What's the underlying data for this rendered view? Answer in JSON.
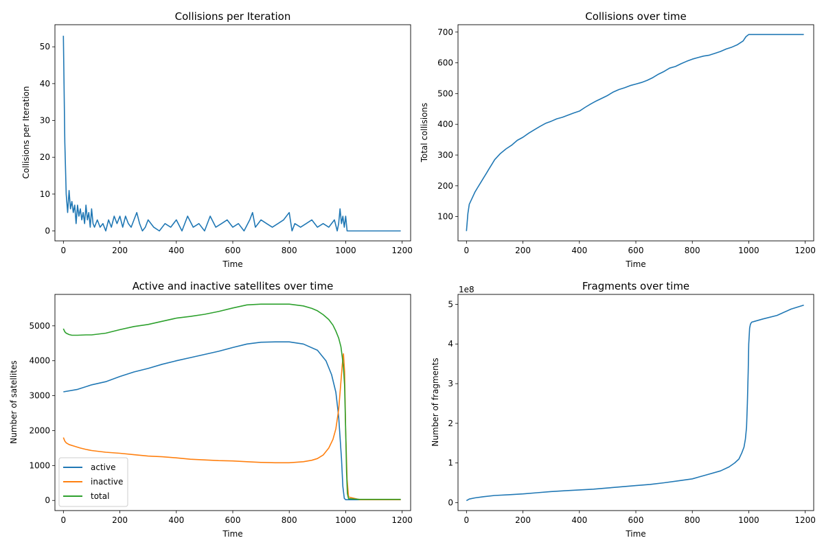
{
  "chart_data": [
    {
      "type": "line",
      "title": "Collisions per Iteration",
      "xlabel": "Time",
      "ylabel": "Collisions per Iteration",
      "xlim": [
        -30,
        1230
      ],
      "ylim": [
        -2.7,
        56
      ],
      "xticks": [
        0,
        200,
        400,
        600,
        800,
        1000,
        1200
      ],
      "yticks": [
        0,
        10,
        20,
        30,
        40,
        50
      ],
      "grid": false,
      "series": [
        {
          "color": "#1f77b4",
          "x": [
            0,
            5,
            10,
            15,
            20,
            25,
            30,
            35,
            40,
            45,
            50,
            55,
            60,
            65,
            70,
            75,
            80,
            85,
            90,
            95,
            100,
            105,
            110,
            120,
            130,
            140,
            150,
            160,
            170,
            180,
            190,
            200,
            210,
            220,
            230,
            240,
            250,
            260,
            270,
            280,
            290,
            300,
            320,
            340,
            360,
            380,
            400,
            420,
            440,
            460,
            480,
            500,
            520,
            540,
            560,
            580,
            600,
            620,
            640,
            660,
            670,
            680,
            700,
            720,
            740,
            760,
            780,
            800,
            810,
            820,
            840,
            860,
            880,
            900,
            920,
            940,
            960,
            970,
            975,
            980,
            985,
            990,
            995,
            1000,
            1005,
            1050,
            1100,
            1150,
            1195
          ],
          "y": [
            53,
            24,
            10,
            5,
            11,
            6,
            8,
            5,
            7,
            2,
            7,
            4,
            6,
            3,
            5,
            2,
            7,
            3,
            5,
            1,
            6,
            2,
            1,
            3,
            1,
            2,
            0,
            3,
            1,
            4,
            2,
            4,
            1,
            4,
            2,
            1,
            3,
            5,
            2,
            0,
            1,
            3,
            1,
            0,
            2,
            1,
            3,
            0,
            4,
            1,
            2,
            0,
            4,
            1,
            2,
            3,
            1,
            2,
            0,
            3,
            5,
            1,
            3,
            2,
            1,
            2,
            3,
            5,
            0,
            2,
            1,
            2,
            3,
            1,
            2,
            1,
            3,
            0,
            2,
            6,
            2,
            4,
            1,
            4,
            0,
            0,
            0,
            0,
            0
          ]
        }
      ]
    },
    {
      "type": "line",
      "title": "Collisions over time",
      "xlabel": "Time",
      "ylabel": "Total collisions",
      "xlim": [
        -30,
        1230
      ],
      "ylim": [
        21,
        724
      ],
      "xticks": [
        0,
        200,
        400,
        600,
        800,
        1000,
        1200
      ],
      "yticks": [
        100,
        200,
        300,
        400,
        500,
        600,
        700
      ],
      "grid": false,
      "series": [
        {
          "color": "#1f77b4",
          "x": [
            0,
            5,
            10,
            20,
            30,
            40,
            50,
            60,
            70,
            80,
            90,
            100,
            120,
            140,
            160,
            180,
            200,
            220,
            240,
            260,
            280,
            300,
            320,
            340,
            360,
            380,
            400,
            420,
            440,
            460,
            480,
            500,
            520,
            540,
            560,
            580,
            600,
            620,
            640,
            660,
            680,
            700,
            720,
            740,
            760,
            780,
            800,
            820,
            840,
            860,
            880,
            900,
            920,
            940,
            960,
            980,
            990,
            1000,
            1100,
            1195
          ],
          "y": [
            53,
            110,
            140,
            160,
            180,
            195,
            210,
            225,
            240,
            255,
            270,
            285,
            305,
            320,
            332,
            348,
            358,
            371,
            382,
            393,
            403,
            410,
            418,
            423,
            430,
            437,
            443,
            455,
            466,
            476,
            485,
            494,
            505,
            513,
            519,
            526,
            531,
            536,
            543,
            552,
            563,
            572,
            583,
            588,
            597,
            605,
            612,
            617,
            622,
            625,
            631,
            637,
            645,
            651,
            659,
            671,
            685,
            692,
            692,
            692
          ]
        }
      ]
    },
    {
      "type": "line",
      "title": "Active and inactive satellites over time",
      "xlabel": "Time",
      "ylabel": "Number of satellites",
      "xlim": [
        -30,
        1230
      ],
      "ylim": [
        -290,
        5900
      ],
      "xticks": [
        0,
        200,
        400,
        600,
        800,
        1000,
        1200
      ],
      "yticks": [
        0,
        1000,
        2000,
        3000,
        4000,
        5000
      ],
      "grid": false,
      "legend": "bottom-left",
      "series": [
        {
          "name": "active",
          "color": "#1f77b4",
          "x": [
            0,
            50,
            100,
            150,
            200,
            250,
            300,
            350,
            400,
            450,
            500,
            550,
            600,
            650,
            700,
            750,
            800,
            850,
            900,
            930,
            950,
            965,
            975,
            985,
            990,
            995,
            1000,
            1050,
            1100,
            1150,
            1195
          ],
          "y": [
            3110,
            3180,
            3310,
            3400,
            3550,
            3680,
            3780,
            3900,
            4000,
            4090,
            4180,
            4270,
            4380,
            4480,
            4530,
            4540,
            4540,
            4480,
            4300,
            4000,
            3600,
            3100,
            2400,
            1200,
            400,
            60,
            20,
            20,
            20,
            20,
            20
          ]
        },
        {
          "name": "inactive",
          "color": "#ff7f0e",
          "x": [
            0,
            5,
            10,
            20,
            40,
            60,
            80,
            100,
            150,
            200,
            250,
            300,
            350,
            400,
            450,
            500,
            550,
            600,
            650,
            700,
            750,
            800,
            850,
            880,
            900,
            920,
            940,
            955,
            965,
            975,
            983,
            988,
            992,
            996,
            1000,
            1005,
            1010,
            1050,
            1100,
            1150,
            1195
          ],
          "y": [
            1800,
            1700,
            1650,
            1600,
            1550,
            1500,
            1460,
            1430,
            1380,
            1350,
            1310,
            1270,
            1250,
            1220,
            1180,
            1160,
            1140,
            1130,
            1110,
            1090,
            1080,
            1080,
            1110,
            1150,
            1200,
            1300,
            1500,
            1750,
            2050,
            2600,
            3400,
            3900,
            4200,
            3700,
            2000,
            600,
            100,
            20,
            20,
            20,
            20
          ]
        },
        {
          "name": "total",
          "color": "#2ca02c",
          "x": [
            0,
            5,
            10,
            20,
            30,
            50,
            80,
            100,
            150,
            200,
            250,
            300,
            350,
            400,
            450,
            500,
            550,
            600,
            650,
            700,
            750,
            800,
            850,
            880,
            900,
            920,
            940,
            955,
            965,
            975,
            983,
            988,
            992,
            996,
            1000,
            1003,
            1006,
            1010,
            1050,
            1100,
            1150,
            1195
          ],
          "y": [
            4920,
            4830,
            4790,
            4750,
            4730,
            4730,
            4740,
            4740,
            4790,
            4890,
            4980,
            5040,
            5130,
            5220,
            5270,
            5330,
            5410,
            5510,
            5600,
            5620,
            5620,
            5620,
            5570,
            5500,
            5430,
            5320,
            5180,
            5020,
            4850,
            4650,
            4400,
            4100,
            3800,
            3300,
            2000,
            800,
            200,
            50,
            30,
            30,
            30,
            30
          ]
        }
      ]
    },
    {
      "type": "line",
      "title": "Fragments over time",
      "xlabel": "Time",
      "ylabel": "Number of fragments",
      "offset_label": "1e8",
      "xlim": [
        -30,
        1230
      ],
      "ylim": [
        -0.2,
        5.25
      ],
      "xticks": [
        0,
        200,
        400,
        600,
        800,
        1000,
        1200
      ],
      "yticks": [
        0,
        1,
        2,
        3,
        4,
        5
      ],
      "grid": false,
      "series": [
        {
          "color": "#1f77b4",
          "x": [
            0,
            10,
            30,
            60,
            100,
            150,
            200,
            250,
            300,
            350,
            400,
            450,
            500,
            550,
            600,
            650,
            700,
            750,
            800,
            850,
            900,
            930,
            950,
            965,
            975,
            983,
            988,
            992,
            995,
            998,
            1000,
            1003,
            1006,
            1010,
            1020,
            1050,
            1100,
            1150,
            1195
          ],
          "y": [
            0.05,
            0.09,
            0.12,
            0.15,
            0.18,
            0.2,
            0.22,
            0.25,
            0.28,
            0.3,
            0.32,
            0.34,
            0.37,
            0.4,
            0.43,
            0.46,
            0.5,
            0.55,
            0.6,
            0.7,
            0.8,
            0.9,
            1.0,
            1.1,
            1.25,
            1.4,
            1.6,
            1.9,
            2.5,
            3.3,
            4.0,
            4.4,
            4.5,
            4.55,
            4.57,
            4.63,
            4.72,
            4.88,
            4.98
          ]
        }
      ]
    }
  ]
}
